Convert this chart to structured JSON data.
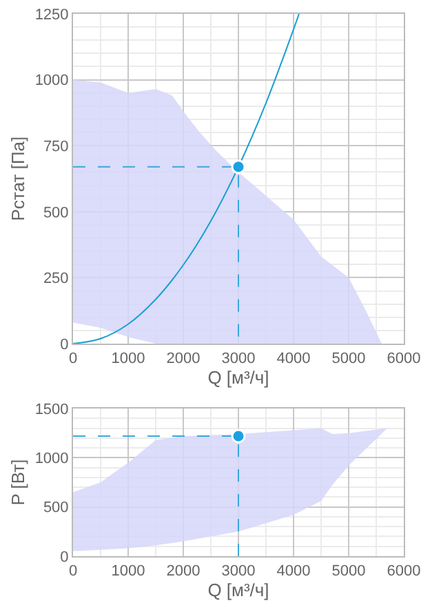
{
  "chart_data": [
    {
      "type": "line",
      "xlabel": "Q [м³/ч]",
      "ylabel": "Рстат [Па]",
      "xlim": [
        0,
        6000
      ],
      "xticks": [
        0,
        1000,
        2000,
        3000,
        4000,
        5000,
        6000
      ],
      "ylim": [
        0,
        1250
      ],
      "yticks": [
        0,
        250,
        500,
        750,
        1000,
        1250
      ],
      "grid": true,
      "series": [
        {
          "color": "#d6d6fa",
          "x": [
            0,
            500,
            1000,
            1500,
            1800,
            2000,
            2300,
            2600,
            3000,
            3500,
            4000,
            4500,
            5000,
            5300,
            5600
          ],
          "values": [
            null,
            null,
            null,
            null,
            null,
            null,
            null,
            null,
            null,
            null,
            null,
            null,
            null,
            null,
            null
          ],
          "upper": [
            1000,
            990,
            950,
            965,
            940,
            880,
            800,
            730,
            650,
            560,
            470,
            330,
            250,
            130,
            0
          ],
          "lower": [
            80,
            60,
            25,
            0,
            0,
            0,
            0,
            0,
            0,
            0,
            0,
            0,
            0,
            0,
            0
          ]
        },
        {
          "type": "line",
          "color": "#1a9fd0",
          "x": [
            0,
            500,
            1000,
            1500,
            2000,
            2500,
            3000,
            3500,
            4000,
            4100
          ],
          "values": [
            0,
            19,
            74,
            168,
            298,
            465,
            670,
            912,
            1191,
            1250
          ],
          "marker": "none",
          "line_style": "solid"
        },
        {
          "type": "line",
          "color": "#3aa8d8",
          "x": [
            0,
            3000,
            3000
          ],
          "values": [
            670,
            670,
            0
          ],
          "marker": "none",
          "line_style": "dashed"
        },
        {
          "type": "scatter",
          "color": "#1ba1e2",
          "x": [
            3000
          ],
          "values": [
            670
          ],
          "marker": "circle"
        }
      ]
    },
    {
      "type": "line",
      "xlabel": "Q [м³/ч]",
      "ylabel": "P [Вт]",
      "xlim": [
        0,
        6000
      ],
      "xticks": [
        0,
        1000,
        2000,
        3000,
        4000,
        5000,
        6000
      ],
      "ylim": [
        0,
        1500
      ],
      "yticks": [
        0,
        500,
        1000,
        1500
      ],
      "grid": true,
      "series": [
        {
          "color": "#d6d6fa",
          "x": [
            0,
            500,
            1000,
            1500,
            2000,
            3000,
            4000,
            4500,
            4700,
            5000,
            5700
          ],
          "values": [
            null,
            null,
            null,
            null,
            null,
            null,
            null,
            null,
            null,
            null,
            null
          ],
          "upper": [
            650,
            750,
            950,
            1180,
            1220,
            1240,
            1280,
            1300,
            1240,
            1250,
            1300
          ],
          "lower": [
            50,
            65,
            80,
            110,
            150,
            250,
            420,
            560,
            720,
            920,
            1300
          ]
        },
        {
          "type": "line",
          "color": "#3aa8d8",
          "x": [
            0,
            3000,
            3000
          ],
          "values": [
            1220,
            1220,
            0
          ],
          "marker": "none",
          "line_style": "dashed"
        },
        {
          "type": "scatter",
          "color": "#1ba1e2",
          "x": [
            3000
          ],
          "values": [
            1220
          ],
          "marker": "circle"
        }
      ]
    }
  ]
}
